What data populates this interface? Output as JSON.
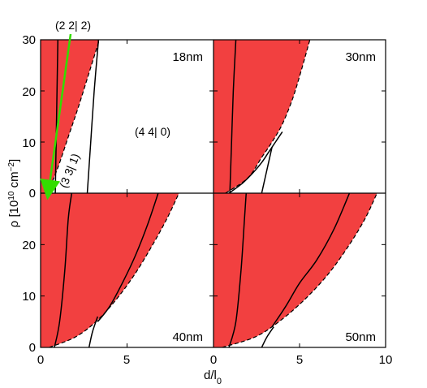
{
  "chart_data": {
    "type": "area",
    "layout": "2x2 panel grid with shared axes",
    "xlabel_main": "d/l",
    "xlabel_sub": "0",
    "ylabel_main": "ρ [10",
    "ylabel_sup1": "10",
    "ylabel_mid": " cm",
    "ylabel_sup2": "−2",
    "ylabel_end": "]",
    "xlim": [
      0,
      10
    ],
    "ylim": [
      0,
      30
    ],
    "panel_xlim": [
      0,
      10
    ],
    "panel_ylim": [
      0,
      30
    ],
    "x_ticks": [
      "0",
      "5",
      "10"
    ],
    "y_ticks": [
      "0",
      "10",
      "20",
      "30"
    ],
    "fill_color": "#f24040",
    "line_color": "#000000",
    "arrow_color": "#33dd00",
    "panels": [
      {
        "label": "18nm",
        "position": "top-left",
        "region_boundary_dashed": {
          "x": [
            0.4,
            1.0,
            1.6,
            2.2,
            2.8,
            3.4
          ],
          "y": [
            0,
            5,
            11,
            17,
            23.5,
            30
          ]
        },
        "solid_curves": [
          {
            "x": [
              0.85,
              0.9,
              0.95,
              1.0
            ],
            "y": [
              0,
              10,
              20,
              30
            ]
          },
          {
            "x": [
              2.7,
              2.9,
              3.1,
              3.35
            ],
            "y": [
              0,
              10,
              20,
              30
            ]
          }
        ],
        "annotations": [
          {
            "text": "(4 4| 0)",
            "x": 5.2,
            "y": 10.5
          },
          {
            "text": "(3 3| 1)",
            "x": 1.7,
            "y": 1.5,
            "rotation": -68
          },
          {
            "text": "(2 2| 2)",
            "x": 1.9,
            "y": 31.5
          }
        ]
      },
      {
        "label": "30nm",
        "position": "top-right",
        "region_boundary_dashed": {
          "x": [
            0.7,
            2.0,
            2.8,
            3.4,
            4.0,
            4.6,
            5.1,
            5.6
          ],
          "y": [
            0,
            3,
            7,
            10,
            13.5,
            18.5,
            24,
            30
          ]
        },
        "solid_curves": [
          {
            "x": [
              0.95,
              1.05,
              1.15,
              1.3
            ],
            "y": [
              0,
              10,
              20,
              30
            ]
          },
          {
            "x": [
              0.9,
              1.7,
              2.3,
              2.8,
              3.2,
              3.6,
              4.0
            ],
            "y": [
              0,
              2,
              4,
              6,
              8,
              10,
              12
            ]
          },
          {
            "x": [
              2.8,
              3.0,
              3.2,
              3.4
            ],
            "y": [
              0,
              3,
              6,
              9
            ]
          }
        ]
      },
      {
        "label": "40nm",
        "position": "bottom-left",
        "region_boundary_dashed": {
          "x": [
            0.5,
            2.0,
            3.2,
            4.3,
            5.4,
            6.4,
            7.3,
            8.0
          ],
          "y": [
            0,
            2,
            5,
            9,
            14,
            19.5,
            25,
            30
          ]
        },
        "solid_curves": [
          {
            "x": [
              0.8,
              1.1,
              1.4,
              1.6,
              1.8
            ],
            "y": [
              0,
              5,
              15,
              25,
              30
            ]
          },
          {
            "x": [
              3.3,
              4.0,
              4.8,
              5.5,
              6.2,
              6.8
            ],
            "y": [
              5,
              8,
              13,
              18,
              24,
              30
            ]
          },
          {
            "x": [
              2.8,
              3.0,
              3.3
            ],
            "y": [
              0,
              3,
              6
            ]
          }
        ]
      },
      {
        "label": "50nm",
        "position": "bottom-right",
        "region_boundary_dashed": {
          "x": [
            0.5,
            2.4,
            3.8,
            5.2,
            6.6,
            7.8,
            8.8,
            9.5
          ],
          "y": [
            0,
            2,
            5,
            9,
            14,
            19.5,
            25,
            30
          ]
        },
        "solid_curves": [
          {
            "x": [
              0.9,
              1.3,
              1.6,
              1.8,
              1.9
            ],
            "y": [
              0,
              5,
              15,
              25,
              30
            ]
          },
          {
            "x": [
              3.4,
              4.2,
              5.0,
              6.0,
              7.0,
              7.9
            ],
            "y": [
              4,
              8,
              12.5,
              17,
              23,
              30
            ]
          },
          {
            "x": [
              2.8,
              3.1,
              3.5
            ],
            "y": [
              0,
              2,
              4
            ]
          }
        ]
      }
    ]
  }
}
